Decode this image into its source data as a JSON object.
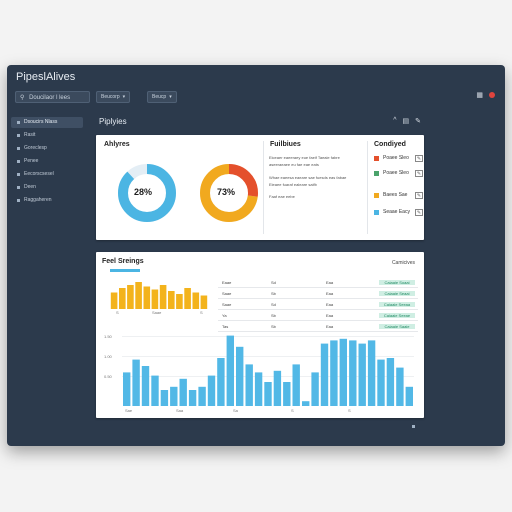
{
  "app": {
    "title": "PipeslAlives"
  },
  "toolbar": {
    "search_label": "Doucilaor l lees",
    "select1_label": "Beucorp",
    "select2_label": "Beucp",
    "icons": [
      "grid-icon",
      "bell-icon"
    ]
  },
  "sidebar": {
    "items": [
      {
        "label": "Dsoucirs Nlass",
        "active": true
      },
      {
        "label": "Rasit",
        "active": false
      },
      {
        "label": "Goreclesp",
        "active": false
      },
      {
        "label": "Penee",
        "active": false
      },
      {
        "label": "Eecorscsesel",
        "active": false
      },
      {
        "label": "Deen",
        "active": false
      },
      {
        "label": "Raggaheren",
        "active": false
      }
    ]
  },
  "content": {
    "title": "Piplyies",
    "actions": [
      "^",
      "▤",
      "✎"
    ]
  },
  "overview": {
    "analytics_title": "Ahlyres",
    "donut1": {
      "value": 28,
      "label": "28%"
    },
    "donut2": {
      "value": 73,
      "label": "73%"
    },
    "features_title": "Fuilbiues",
    "feature_lines": [
      "Eiceaer eaeeraey eue  faeif Taeaie fabre",
      "aseeraeaee eu fae eae eats",
      "Whae eaeesa eaeare sae fuesds eas fabae",
      "Eieaee fuaraf ealeare saifb"
    ],
    "feature_footer": "Faaf eae eebe",
    "legend_title": "Condiyed",
    "legend": [
      {
        "label": "Poaee Sleo",
        "color": "#e4502c"
      },
      {
        "label": "Poaee Sleo",
        "color": "#4aa36b"
      },
      {
        "label": "Baees Sae",
        "color": "#f1a91f"
      },
      {
        "label": "Seaae Eacy",
        "color": "#4bb5e3"
      }
    ]
  },
  "stats": {
    "title": "Feel Sreings",
    "right_label": "Camicives",
    "rows": [
      {
        "c1": "Eaae",
        "c2": "Sd",
        "c3": "Eaa",
        "c4": "Ee",
        "badge": "Caiaaie Soaai"
      },
      {
        "c1": "Saae",
        "c2": "Sb",
        "c3": "Eaa",
        "c4": "Ee",
        "badge": "Caiaaie Seaai"
      },
      {
        "c1": "Saae",
        "c2": "Sd",
        "c3": "Eaa",
        "c4": "Ee",
        "badge": "Caiaaie Seeaa"
      },
      {
        "c1": "Ya",
        "c2": "Sb",
        "c3": "Eaa",
        "c4": "Ee",
        "badge": "Caiaaie Seeae"
      },
      {
        "c1": "Tas",
        "c2": "Sb",
        "c3": "Eaa",
        "c4": "Ee",
        "badge": "Caiaaie Saaie"
      }
    ],
    "mini_bars_axis": [
      "S",
      "Saae",
      "S"
    ]
  },
  "chart_data": {
    "type": "bar",
    "yticks": [
      "1.50",
      "1.00",
      "0.50"
    ],
    "xticks": [
      "Sae",
      "Saa",
      "Sa",
      "S",
      "S"
    ],
    "values": [
      0.42,
      0.58,
      0.5,
      0.38,
      0.2,
      0.24,
      0.34,
      0.2,
      0.24,
      0.38,
      0.6,
      0.88,
      0.74,
      0.52,
      0.42,
      0.3,
      0.44,
      0.3,
      0.52,
      0.06,
      0.42,
      0.78,
      0.82,
      0.84,
      0.82,
      0.78,
      0.82,
      0.58,
      0.6,
      0.48,
      0.24
    ],
    "color": "#52b8e6"
  },
  "mini_chart": {
    "values": [
      0.55,
      0.7,
      0.8,
      0.9,
      0.75,
      0.65,
      0.8,
      0.6,
      0.5,
      0.7,
      0.55,
      0.45
    ],
    "color": "#f3b31c"
  }
}
